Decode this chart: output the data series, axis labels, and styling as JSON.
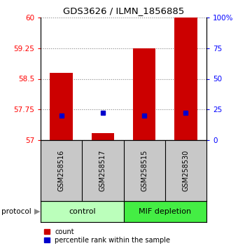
{
  "title": "GDS3626 / ILMN_1856885",
  "samples": [
    "GSM258516",
    "GSM258517",
    "GSM258515",
    "GSM258530"
  ],
  "count_values": [
    58.65,
    57.18,
    59.25,
    60.0
  ],
  "percentile_values": [
    57.6,
    57.67,
    57.6,
    57.67
  ],
  "ylim_left": [
    57,
    60
  ],
  "yticks_left": [
    57,
    57.75,
    58.5,
    59.25,
    60
  ],
  "ytick_labels_left": [
    "57",
    "57.75",
    "58.5",
    "59.25",
    "60"
  ],
  "ylim_right": [
    0,
    100
  ],
  "yticks_right": [
    0,
    25,
    50,
    75,
    100
  ],
  "ytick_labels_right": [
    "0",
    "25",
    "50",
    "75",
    "100%"
  ],
  "bar_color": "#cc0000",
  "percentile_color": "#0000cc",
  "control_color": "#bbffbb",
  "mif_color": "#44ee44",
  "label_bg_color": "#c8c8c8",
  "group_labels": [
    "control",
    "MIF depletion"
  ],
  "legend_count": "count",
  "legend_percentile": "percentile rank within the sample",
  "bar_width": 0.55
}
